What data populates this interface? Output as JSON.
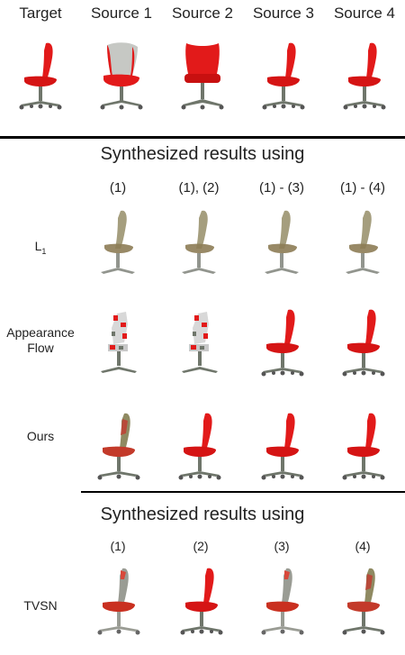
{
  "top_headers": [
    "Target",
    "Source 1",
    "Source 2",
    "Source 3",
    "Source 4"
  ],
  "section1": {
    "title": "Synthesized results using",
    "columns": [
      "(1)",
      "(1), (2)",
      "(1) - (3)",
      "(1) - (4)"
    ],
    "rows": [
      {
        "label_main": "L",
        "label_sub": "1"
      },
      {
        "label_line1": "Appearance",
        "label_line2": "Flow"
      },
      {
        "label": "Ours"
      }
    ]
  },
  "section2": {
    "title": "Synthesized results using",
    "columns": [
      "(1)",
      "(2)",
      "(3)",
      "(4)"
    ],
    "rows": [
      {
        "label": "TVSN"
      }
    ]
  },
  "colors": {
    "seat_red": "#e21a1a",
    "frame_gray": "#6f766b",
    "blurry_olive": "#8d8a64",
    "accent": "#000000"
  }
}
